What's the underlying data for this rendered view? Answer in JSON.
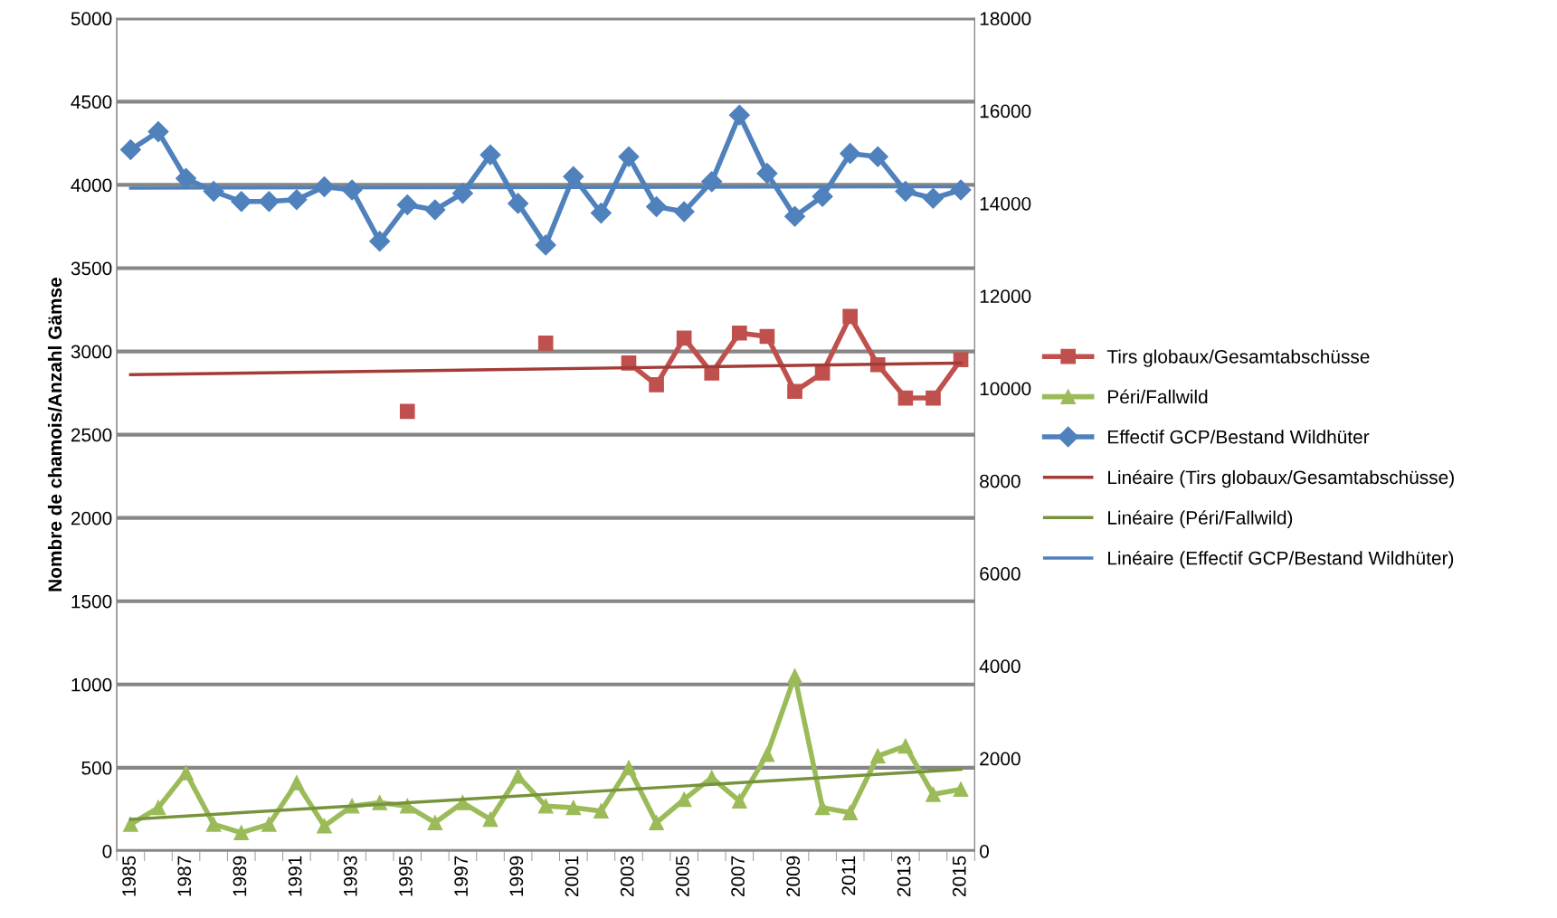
{
  "chart_data": {
    "type": "line",
    "ylabel": "Nombre de chamois/Anzahl Gämse",
    "categories": [
      "1985",
      null,
      "1987",
      null,
      "1989",
      null,
      "1991",
      null,
      "1993",
      null,
      "1995",
      null,
      "1997",
      null,
      "1999",
      null,
      "2001",
      null,
      "2003",
      null,
      "2005",
      null,
      "2007",
      null,
      "2009",
      null,
      "2011",
      null,
      "2013",
      null,
      "2015"
    ],
    "series": [
      {
        "name": "Tirs globaux/Gesamtabschüsse",
        "color": "#c0504d",
        "marker": "square",
        "values": [
          null,
          null,
          null,
          null,
          null,
          null,
          null,
          null,
          null,
          null,
          2640,
          null,
          null,
          null,
          null,
          3050,
          null,
          null,
          2930,
          2800,
          3080,
          2870,
          3110,
          3090,
          2760,
          2870,
          3210,
          2920,
          2720,
          2720,
          2950
        ]
      },
      {
        "name": "Péri/Fallwild",
        "color": "#9bbb59",
        "marker": "triangle",
        "values": [
          160,
          260,
          470,
          160,
          110,
          160,
          410,
          150,
          270,
          290,
          270,
          170,
          290,
          190,
          450,
          270,
          260,
          240,
          500,
          170,
          310,
          440,
          300,
          580,
          1050,
          260,
          230,
          570,
          630,
          340,
          370
        ]
      },
      {
        "name": "Effectif GCP/Bestand Wildhüter",
        "color": "#4f81bd",
        "marker": "diamond",
        "axis": "y2",
        "values": [
          15160,
          15550,
          14540,
          14260,
          14040,
          14040,
          14080,
          14360,
          14290,
          13180,
          13970,
          13860,
          14220,
          15050,
          14000,
          13100,
          14580,
          13790,
          15010,
          13930,
          13820,
          14470,
          15910,
          14650,
          13720,
          14150,
          15080,
          15010,
          14260,
          14110,
          14290
        ]
      },
      {
        "name": "Linéaire (Tirs globaux/Gesamtabschüsse)",
        "color": "#a33b36",
        "marker": "none",
        "values": [
          2860,
          null,
          null,
          null,
          null,
          null,
          null,
          null,
          null,
          null,
          null,
          null,
          null,
          null,
          null,
          null,
          null,
          null,
          null,
          null,
          null,
          null,
          null,
          null,
          null,
          null,
          null,
          null,
          null,
          null,
          2930
        ]
      },
      {
        "name": "Linéaire (Péri/Fallwild)",
        "color": "#77933c",
        "marker": "none",
        "values": [
          190,
          null,
          null,
          null,
          null,
          null,
          null,
          null,
          null,
          null,
          null,
          null,
          null,
          null,
          null,
          null,
          null,
          null,
          null,
          null,
          null,
          null,
          null,
          null,
          null,
          null,
          null,
          null,
          null,
          null,
          490
        ]
      },
      {
        "name": "Linéaire (Effectif GCP/Bestand Wildhüter)",
        "color": "#4f81bd",
        "marker": "none",
        "axis": "y2",
        "values": [
          14330,
          null,
          null,
          null,
          null,
          null,
          null,
          null,
          null,
          null,
          null,
          null,
          null,
          null,
          null,
          null,
          null,
          null,
          null,
          null,
          null,
          null,
          null,
          null,
          null,
          null,
          null,
          null,
          null,
          null,
          14360
        ]
      }
    ],
    "ylim": [
      0,
      5000
    ],
    "yticks": [
      0,
      500,
      1000,
      1500,
      2000,
      2500,
      3000,
      3500,
      4000,
      4500,
      5000
    ],
    "y2lim": [
      0,
      18000
    ],
    "y2ticks": [
      0,
      2000,
      4000,
      6000,
      8000,
      10000,
      12000,
      14000,
      16000,
      18000
    ],
    "grid": "y",
    "legend": "right",
    "line_style": "solid"
  }
}
